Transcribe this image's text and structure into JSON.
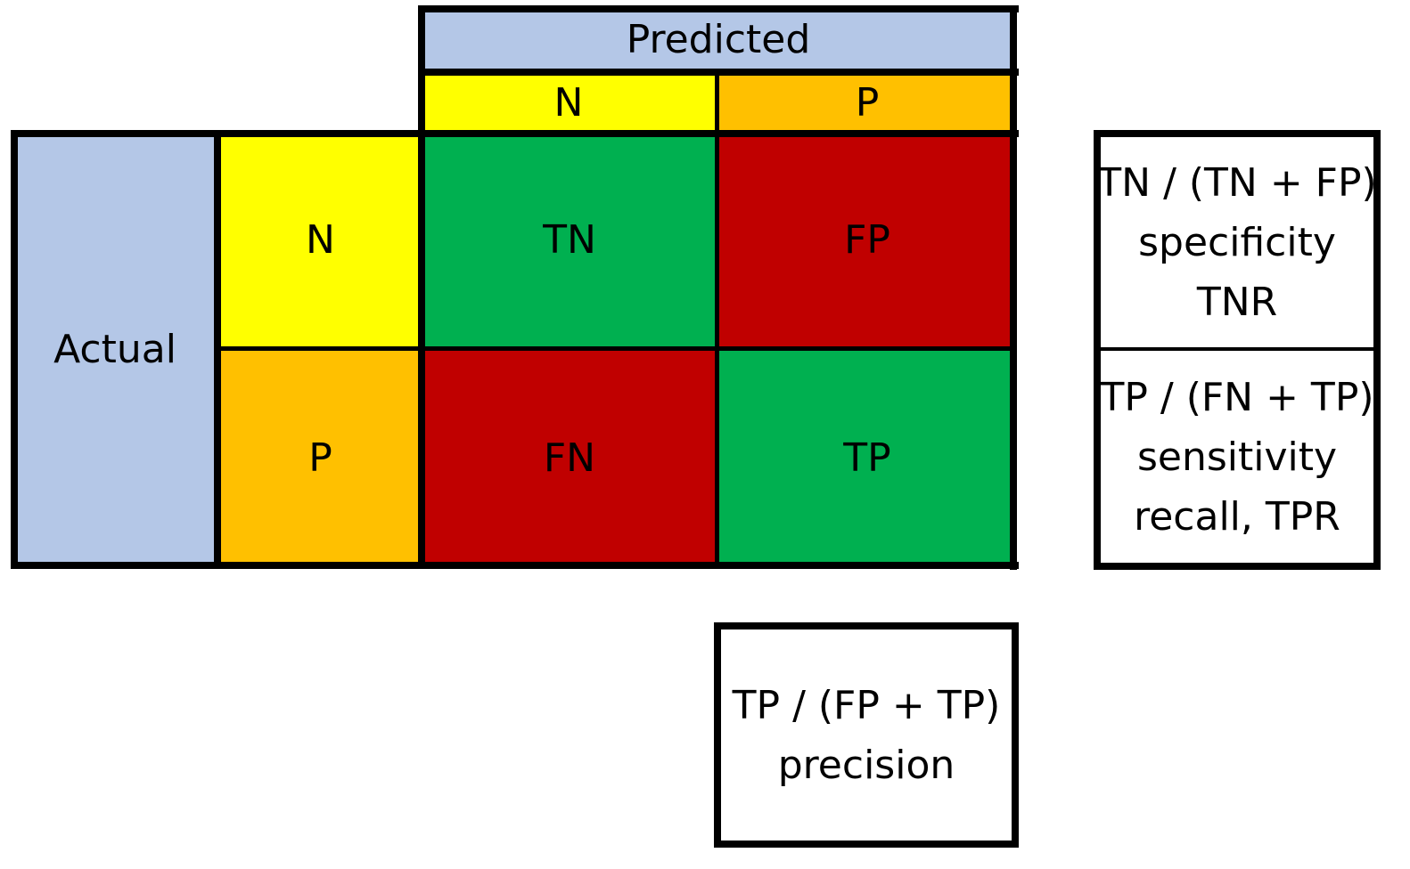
{
  "colors": {
    "header_blue": "#b4c7e7",
    "negative_yellow": "#ffff00",
    "positive_orange": "#ffc000",
    "correct_green": "#00b050",
    "error_red": "#c00000",
    "border": "#000000"
  },
  "predicted": {
    "header": "Predicted",
    "n_label": "N",
    "p_label": "P"
  },
  "actual": {
    "header": "Actual",
    "n_label": "N",
    "p_label": "P"
  },
  "matrix": {
    "tn": "TN",
    "fp": "FP",
    "fn": "FN",
    "tp": "TP"
  },
  "metrics": {
    "specificity": {
      "formula": "TN / (TN + FP)",
      "name": "specificity",
      "alias": "TNR"
    },
    "sensitivity": {
      "formula": "TP / (FN + TP)",
      "name": "sensitivity",
      "alias": "recall, TPR"
    },
    "precision": {
      "formula": "TP / (FP + TP)",
      "name": "precision"
    }
  }
}
